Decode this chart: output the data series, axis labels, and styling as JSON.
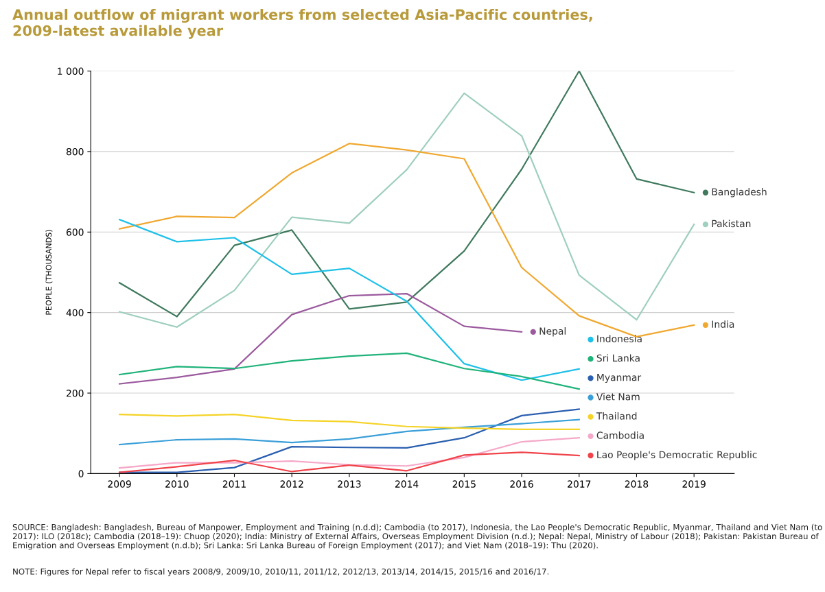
{
  "chart_data": {
    "type": "line",
    "title": "Annual outflow of migrant workers from selected Asia-Pacific countries,\n2009-latest available year",
    "ylabel": "PEOPLE (THOUSANDS)",
    "x": [
      2009,
      2010,
      2011,
      2012,
      2013,
      2014,
      2015,
      2016,
      2017,
      2018,
      2019
    ],
    "xlim": [
      2008.5,
      2019.7
    ],
    "xticks": [
      2009,
      2010,
      2011,
      2012,
      2013,
      2014,
      2015,
      2016,
      2017,
      2018,
      2019
    ],
    "ylim": [
      0,
      1000
    ],
    "yticks": [
      0,
      200,
      400,
      600,
      800,
      {
        "value": 1000,
        "label": "1 000"
      }
    ],
    "grid": "y",
    "legend": "right",
    "marker": "none",
    "line_style": "solid",
    "series": [
      {
        "name": "Bangladesh",
        "color": "#3f7a5e",
        "values": [
          474,
          390,
          567,
          605,
          409,
          426,
          553,
          756,
          1000,
          732,
          698
        ]
      },
      {
        "name": "Pakistan",
        "color": "#9fcfbe",
        "values": [
          402,
          364,
          455,
          637,
          622,
          755,
          945,
          839,
          493,
          382,
          619
        ]
      },
      {
        "name": "India",
        "color": "#f0a830",
        "values": [
          608,
          639,
          636,
          747,
          820,
          804,
          782,
          512,
          392,
          340,
          369
        ]
      },
      {
        "name": "Nepal",
        "color": "#9b5a9e",
        "values": [
          223,
          239,
          260,
          395,
          442,
          447,
          366,
          352,
          null,
          null,
          null
        ]
      },
      {
        "name": "Indonesia",
        "color": "#1ec0e8",
        "values": [
          631,
          576,
          586,
          495,
          510,
          428,
          273,
          232,
          260,
          null,
          null
        ]
      },
      {
        "name": "Sri Lanka",
        "color": "#1fb37a",
        "values": [
          246,
          266,
          261,
          280,
          292,
          299,
          261,
          241,
          210,
          null,
          null
        ]
      },
      {
        "name": "Myanmar",
        "color": "#2a5fb0",
        "values": [
          3,
          3,
          15,
          67,
          65,
          64,
          89,
          144,
          160,
          null,
          null
        ]
      },
      {
        "name": "Viet Nam",
        "color": "#3a9fd8",
        "values": [
          72,
          84,
          86,
          77,
          86,
          105,
          115,
          124,
          134,
          null,
          null
        ]
      },
      {
        "name": "Thailand",
        "color": "#f5d327",
        "values": [
          147,
          143,
          147,
          132,
          129,
          117,
          113,
          110,
          110,
          null,
          null
        ]
      },
      {
        "name": "Cambodia",
        "color": "#f5a8c8",
        "values": [
          14,
          27,
          27,
          31,
          22,
          19,
          40,
          79,
          89,
          null,
          null
        ]
      },
      {
        "name": "Lao People's Democratic Republic",
        "color": "#f0434a",
        "values": [
          3,
          17,
          33,
          5,
          21,
          7,
          46,
          53,
          45,
          null,
          null
        ]
      }
    ],
    "annotations": [
      "SOURCE: Bangladesh: Bangladesh, Bureau of Manpower, Employment and Training (n.d.d); Cambodia (to 2017), Indonesia, the Lao People's Democratic Republic, Myanmar, Thailand and Viet Nam (to 2017): ILO (2018c); Cambodia (2018–19): Chuop (2020); India: Ministry of External Affairs, Overseas Employment Division (n.d.); Nepal: Nepal, Ministry of Labour (2018); Pakistan: Pakistan Bureau of Emigration and Overseas Employment (n.d.b); Sri Lanka: Sri Lanka Bureau of Foreign Employment (2017); and Viet Nam (2018–19): Thu (2020).",
      "NOTE: Figures for Nepal refer to fiscal years 2008/9, 2009/10, 2010/11, 2011/12, 2012/13, 2013/14, 2014/15, 2015/16 and 2016/17."
    ]
  }
}
